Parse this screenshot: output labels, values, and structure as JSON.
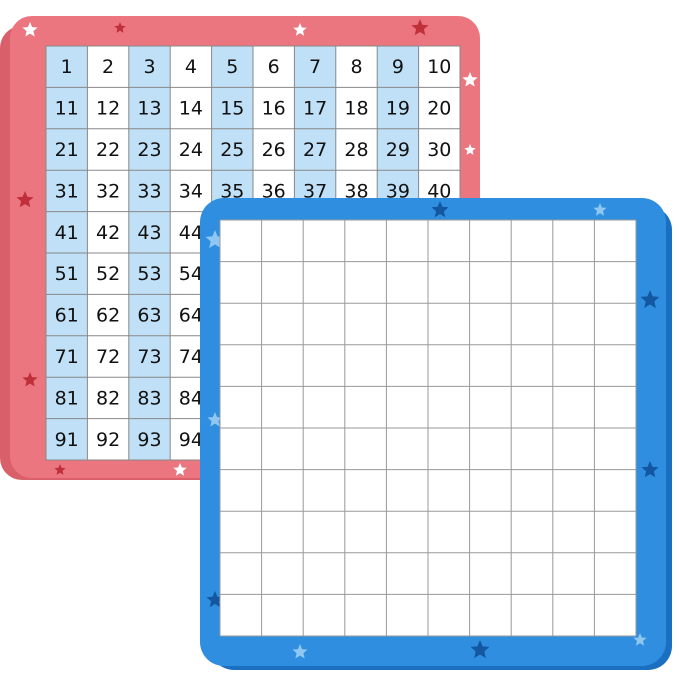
{
  "hundreds_chart": {
    "rows": [
      [
        1,
        2,
        3,
        4,
        5,
        6,
        7,
        8,
        9,
        10
      ],
      [
        11,
        12,
        13,
        14,
        15,
        16,
        17,
        18,
        19,
        20
      ],
      [
        21,
        22,
        23,
        24,
        25,
        26,
        27,
        28,
        29,
        30
      ],
      [
        31,
        32,
        33,
        34,
        35,
        36,
        37,
        38,
        39,
        40
      ],
      [
        41,
        42,
        43,
        44
      ],
      [
        51,
        52,
        53,
        54
      ],
      [
        61,
        62,
        63,
        64
      ],
      [
        71,
        72,
        73,
        74
      ],
      [
        81,
        82,
        83,
        84
      ],
      [
        91,
        92,
        93,
        94
      ]
    ]
  }
}
